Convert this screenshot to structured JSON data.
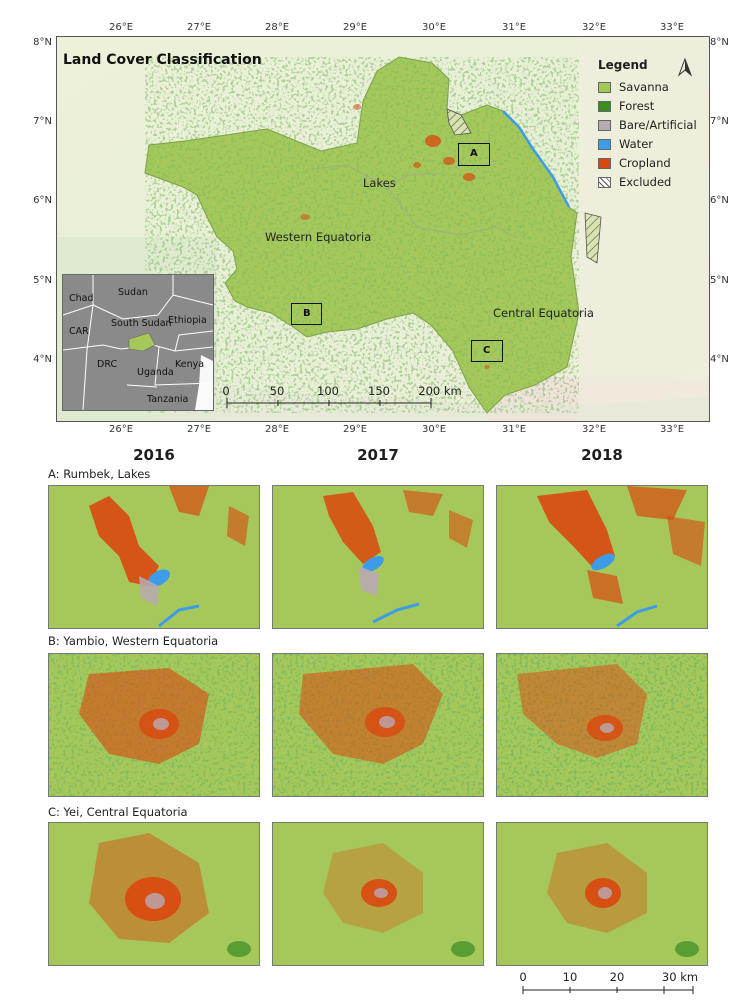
{
  "main_map": {
    "title": "Land Cover Classification",
    "north_arrow": "north-arrow-icon",
    "lon_ticks": [
      "26°E",
      "27°E",
      "28°E",
      "29°E",
      "30°E",
      "31°E",
      "32°E",
      "33°E"
    ],
    "lat_ticks": [
      "8°N",
      "7°N",
      "6°N",
      "5°N",
      "4°N"
    ],
    "regions": {
      "lakes": "Lakes",
      "western_equatoria": "Western Equatoria",
      "central_equatoria": "Central Equatoria"
    },
    "aoi": {
      "a": "A",
      "b": "B",
      "c": "C"
    },
    "scale_bar": {
      "labels": [
        "0",
        "50",
        "100",
        "150",
        "200 km"
      ]
    }
  },
  "legend": {
    "title": "Legend",
    "items": [
      {
        "label": "Savanna",
        "color": "#a4c857"
      },
      {
        "label": "Forest",
        "color": "#3a8f20"
      },
      {
        "label": "Bare/Artificial",
        "color": "#b9a9b4"
      },
      {
        "label": "Water",
        "color": "#3d9be8"
      },
      {
        "label": "Cropland",
        "color": "#d9480f"
      },
      {
        "label": "Excluded",
        "color": "#ffffff"
      }
    ]
  },
  "inset": {
    "labels": {
      "chad": "Chad",
      "sudan": "Sudan",
      "south_sudan": "South Sudan",
      "ethiopia": "Ethiopia",
      "car": "CAR",
      "drc": "DRC",
      "uganda": "Uganda",
      "kenya": "Kenya",
      "tanzania": "Tanzania"
    }
  },
  "years": [
    "2016",
    "2017",
    "2018"
  ],
  "rows": [
    {
      "label": "A: Rumbek, Lakes"
    },
    {
      "label": "B: Yambio, Western Equatoria"
    },
    {
      "label": "C: Yei, Central Equatoria"
    }
  ],
  "panel_scale_bar": {
    "labels": [
      "0",
      "10",
      "20",
      "30 km"
    ]
  }
}
